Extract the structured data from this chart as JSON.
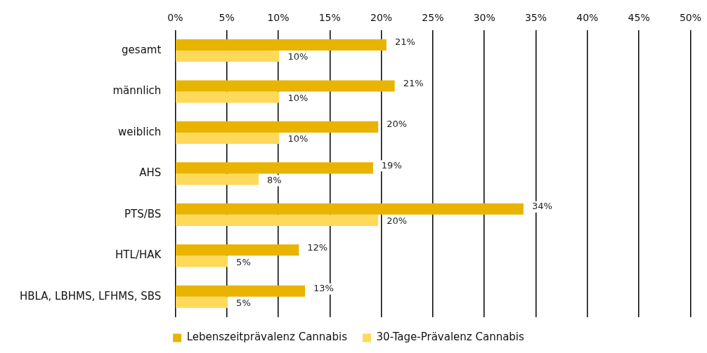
{
  "chart_data": {
    "type": "bar",
    "orientation": "horizontal",
    "categories": [
      "gesamt",
      "männlich",
      "weiblich",
      "AHS",
      "PTS/BS",
      "HTL/HAK",
      "HBLA, LBHMS, LFHMS, SBS"
    ],
    "series": [
      {
        "name": "Lebenszeitprävalenz Cannabis",
        "color": "#e8b400",
        "values": [
          20.5,
          21.3,
          19.7,
          19.2,
          33.8,
          12.0,
          12.6
        ],
        "value_labels": [
          "21%",
          "21%",
          "20%",
          "19%",
          "34%",
          "12%",
          "13%"
        ]
      },
      {
        "name": "30-Tage-Prävalenz Cannabis",
        "color": "#ffd95a",
        "values": [
          10.1,
          10.1,
          10.1,
          8.1,
          19.7,
          5.1,
          5.1
        ],
        "value_labels": [
          "10%",
          "10%",
          "10%",
          "8%",
          "20%",
          "5%",
          "5%"
        ]
      }
    ],
    "xlim": [
      0,
      50
    ],
    "xticks": [
      {
        "value": 0,
        "label": "0%"
      },
      {
        "value": 5,
        "label": "5%"
      },
      {
        "value": 10,
        "label": "10%"
      },
      {
        "value": 15,
        "label": "15%"
      },
      {
        "value": 20,
        "label": "20%"
      },
      {
        "value": 25,
        "label": "25%"
      },
      {
        "value": 30,
        "label": "30%"
      },
      {
        "value": 35,
        "label": "35%"
      },
      {
        "value": 40,
        "label": "40%"
      },
      {
        "value": 45,
        "label": "45%"
      },
      {
        "value": 50,
        "label": "50%"
      }
    ],
    "grid": "x",
    "legend": "bottom"
  }
}
